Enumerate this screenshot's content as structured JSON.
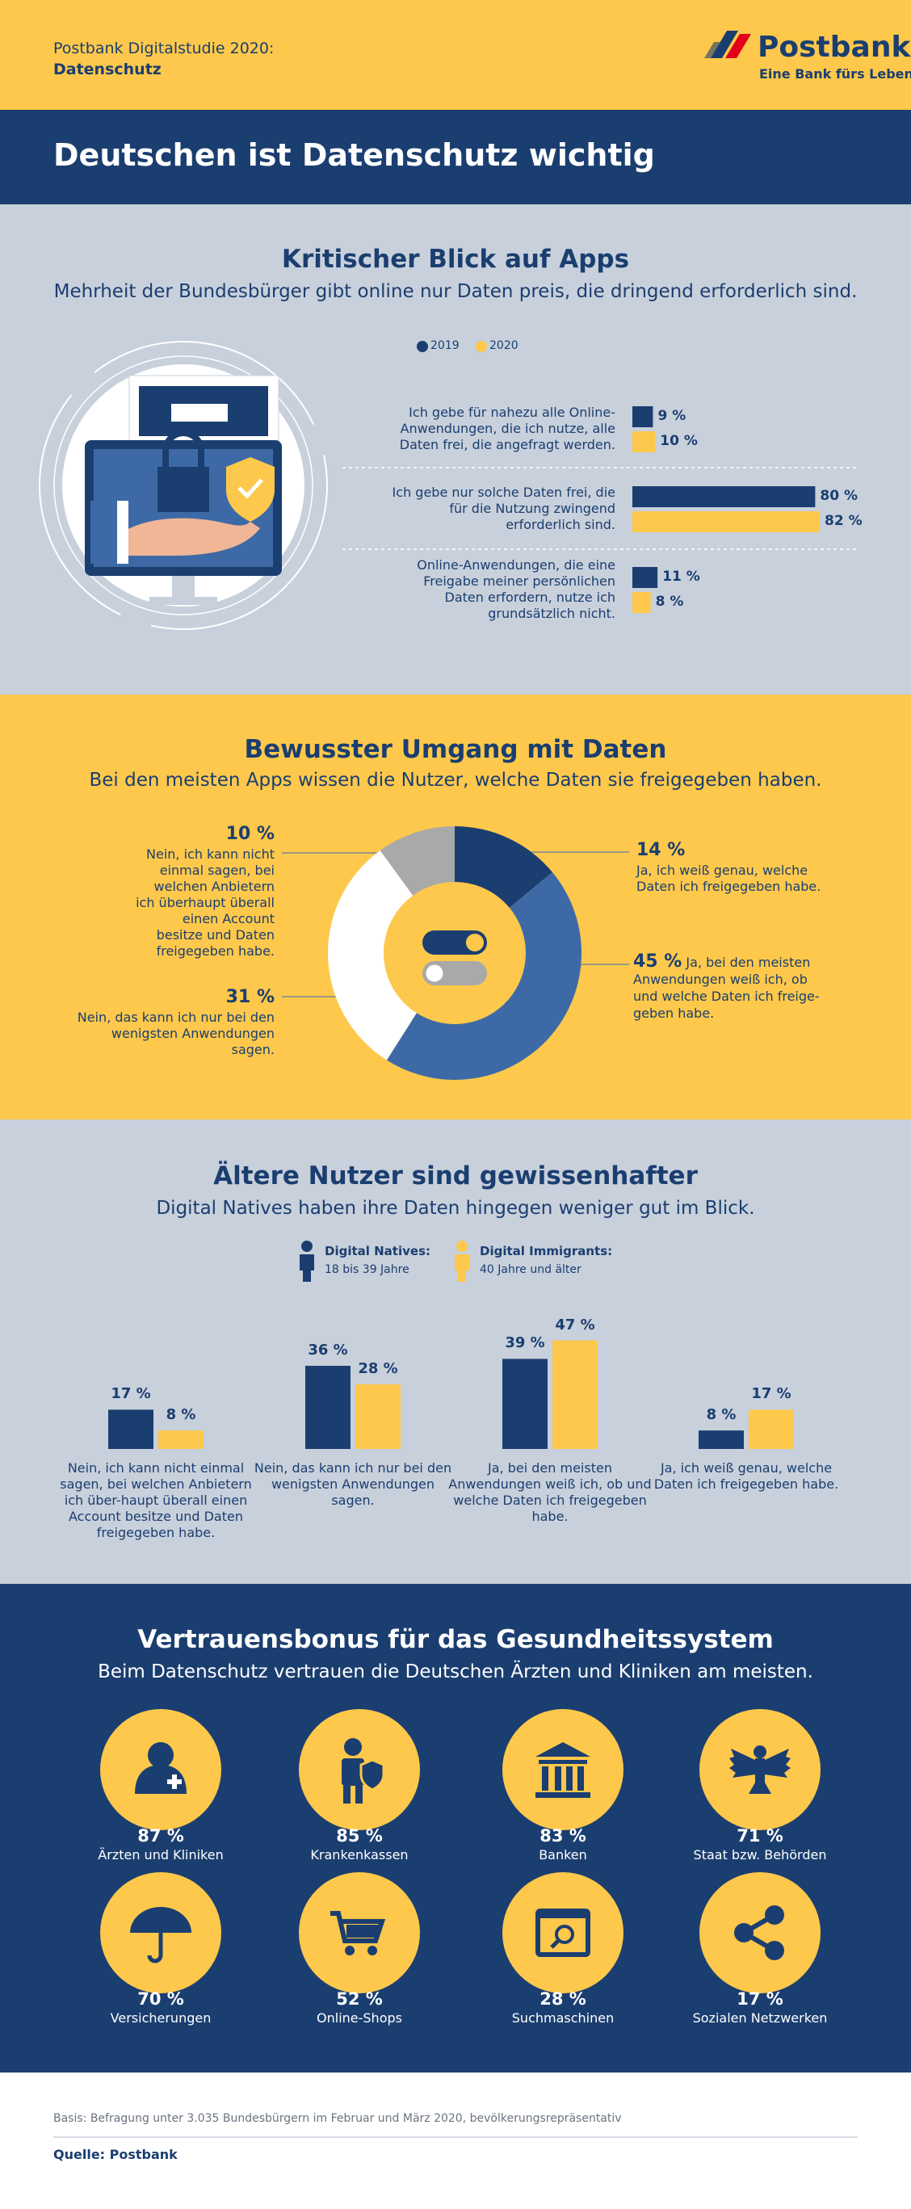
{
  "header": {
    "title": "Postbank Digitalstudie 2020:",
    "subtitle": "Datenschutz"
  },
  "logo": {
    "name": "Postbank",
    "tagline": "Eine Bank fürs Leben."
  },
  "banner": {
    "title": "Deutschen ist Datenschutz wichtig"
  },
  "chart_data": [
    {
      "type": "bar",
      "orientation": "horizontal",
      "title": "Kritischer Blick auf Apps",
      "subtitle": "Mehrheit der Bundesbürger gibt online nur Daten preis, die dringend erforderlich sind.",
      "categories": [
        "Ich gebe für nahezu alle Online-Anwendungen, die ich nutze, alle Daten frei, die angefragt werden.",
        "Ich gebe nur solche Daten frei, die für die Nutzung zwingend erforderlich sind.",
        "Online-Anwendungen, die eine Freigabe meiner persönlichen Daten erfordern, nutze ich grundsätzlich nicht."
      ],
      "series": [
        {
          "name": "2019",
          "color": "#1b3e70",
          "values": [
            9,
            80,
            11
          ],
          "value_labels": [
            "9 %",
            "80 %",
            "11 %"
          ]
        },
        {
          "name": "2020",
          "color": "#fdc84b",
          "values": [
            10,
            82,
            8
          ],
          "value_labels": [
            "10 %",
            "82 %",
            "8 %"
          ]
        }
      ]
    },
    {
      "type": "pie",
      "title": "Bewusster Umgang mit Daten",
      "subtitle": "Bei den meisten Apps wissen die Nutzer, welche Daten sie freigegeben haben.",
      "categories": [
        "Ja, ich weiß genau, welche Daten ich freigegeben habe.",
        "Ja, bei den meisten Anwendungen weiß ich, ob und welche Daten ich freige-geben habe.",
        "Nein, das kann ich nur bei den wenigsten Anwendungen sagen.",
        "Nein, ich kann nicht einmal sagen, bei welchen Anbietern ich überhaupt überall einen Account besitze und Daten freigegeben habe."
      ],
      "values": [
        14,
        45,
        31,
        10
      ],
      "value_labels": [
        "14 %",
        "45 %",
        "31 %",
        "10 %"
      ],
      "colors": [
        "#1b3e70",
        "#3d6aa6",
        "#ffffff",
        "#a9a9a9"
      ]
    },
    {
      "type": "bar",
      "orientation": "vertical",
      "title": "Ältere Nutzer sind gewissenhafter",
      "subtitle": "Digital Natives haben ihre Daten hingegen weniger gut im Blick.",
      "categories": [
        "Nein, ich kann nicht einmal sagen, bei welchen Anbietern ich über-haupt überall einen Account besitze und Daten freigegeben habe.",
        "Nein, das kann ich nur bei den wenigsten Anwendungen sagen.",
        "Ja, bei den meisten Anwendungen weiß ich, ob und welche Daten ich freigegeben habe.",
        "Ja, ich weiß genau, welche Daten ich freigegeben habe."
      ],
      "series": [
        {
          "name": "Digital Natives:",
          "note": "18 bis 39 Jahre",
          "color": "#1b3e70",
          "values": [
            17,
            36,
            39,
            8
          ],
          "value_labels": [
            "17 %",
            "36 %",
            "39 %",
            "8 %"
          ]
        },
        {
          "name": "Digital Immigrants:",
          "note": "40 Jahre und älter",
          "color": "#fdc84b",
          "values": [
            8,
            28,
            47,
            17
          ],
          "value_labels": [
            "8 %",
            "28 %",
            "47 %",
            "17 %"
          ]
        }
      ]
    }
  ],
  "trust": {
    "title": "Vertrauensbonus für das Gesundheitssystem",
    "subtitle": "Beim Datenschutz vertrauen die Deutschen Ärzten und Kliniken am meisten.",
    "items": [
      {
        "value": "87 %",
        "label": "Ärzten und Kliniken"
      },
      {
        "value": "85 %",
        "label": "Krankenkassen"
      },
      {
        "value": "83 %",
        "label": "Banken"
      },
      {
        "value": "71 %",
        "label": "Staat bzw. Behörden"
      },
      {
        "value": "70 %",
        "label": "Versicherungen"
      },
      {
        "value": "52 %",
        "label": "Online-Shops"
      },
      {
        "value": "28 %",
        "label": "Suchmaschinen"
      },
      {
        "value": "17 %",
        "label": "Sozialen Netzwerken"
      }
    ]
  },
  "footer": {
    "basis": "Basis: Befragung unter 3.035 Bundesbürgern im Februar und März 2020, bevölkerungsrepräsentativ",
    "source": "Quelle: Postbank"
  }
}
